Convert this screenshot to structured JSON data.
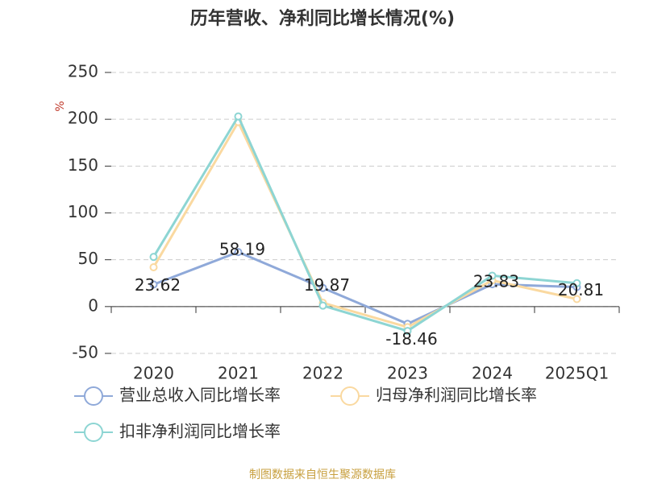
{
  "chart_data": {
    "type": "line",
    "title": "历年营收、净利同比增长情况(%)",
    "y_label": "%",
    "categories": [
      "2020",
      "2021",
      "2022",
      "2023",
      "2024",
      "2025Q1"
    ],
    "series": [
      {
        "name": "营业总收入同比增长率",
        "color": "#8fa9d9",
        "values": [
          23.62,
          58.19,
          19.87,
          -18.46,
          23.83,
          20.81
        ]
      },
      {
        "name": "归母净利润同比增长率",
        "color": "#fad9a0",
        "values": [
          42,
          197,
          4,
          -22,
          28,
          8
        ]
      },
      {
        "name": "扣非净利润同比增长率",
        "color": "#8dd5d3",
        "values": [
          53,
          203,
          1,
          -26,
          33,
          25
        ]
      }
    ],
    "ylim": [
      -50,
      250
    ],
    "yticks": [
      -50,
      0,
      50,
      100,
      150,
      200,
      250
    ],
    "grid": true,
    "source": "制图数据来自恒生聚源数据库"
  }
}
